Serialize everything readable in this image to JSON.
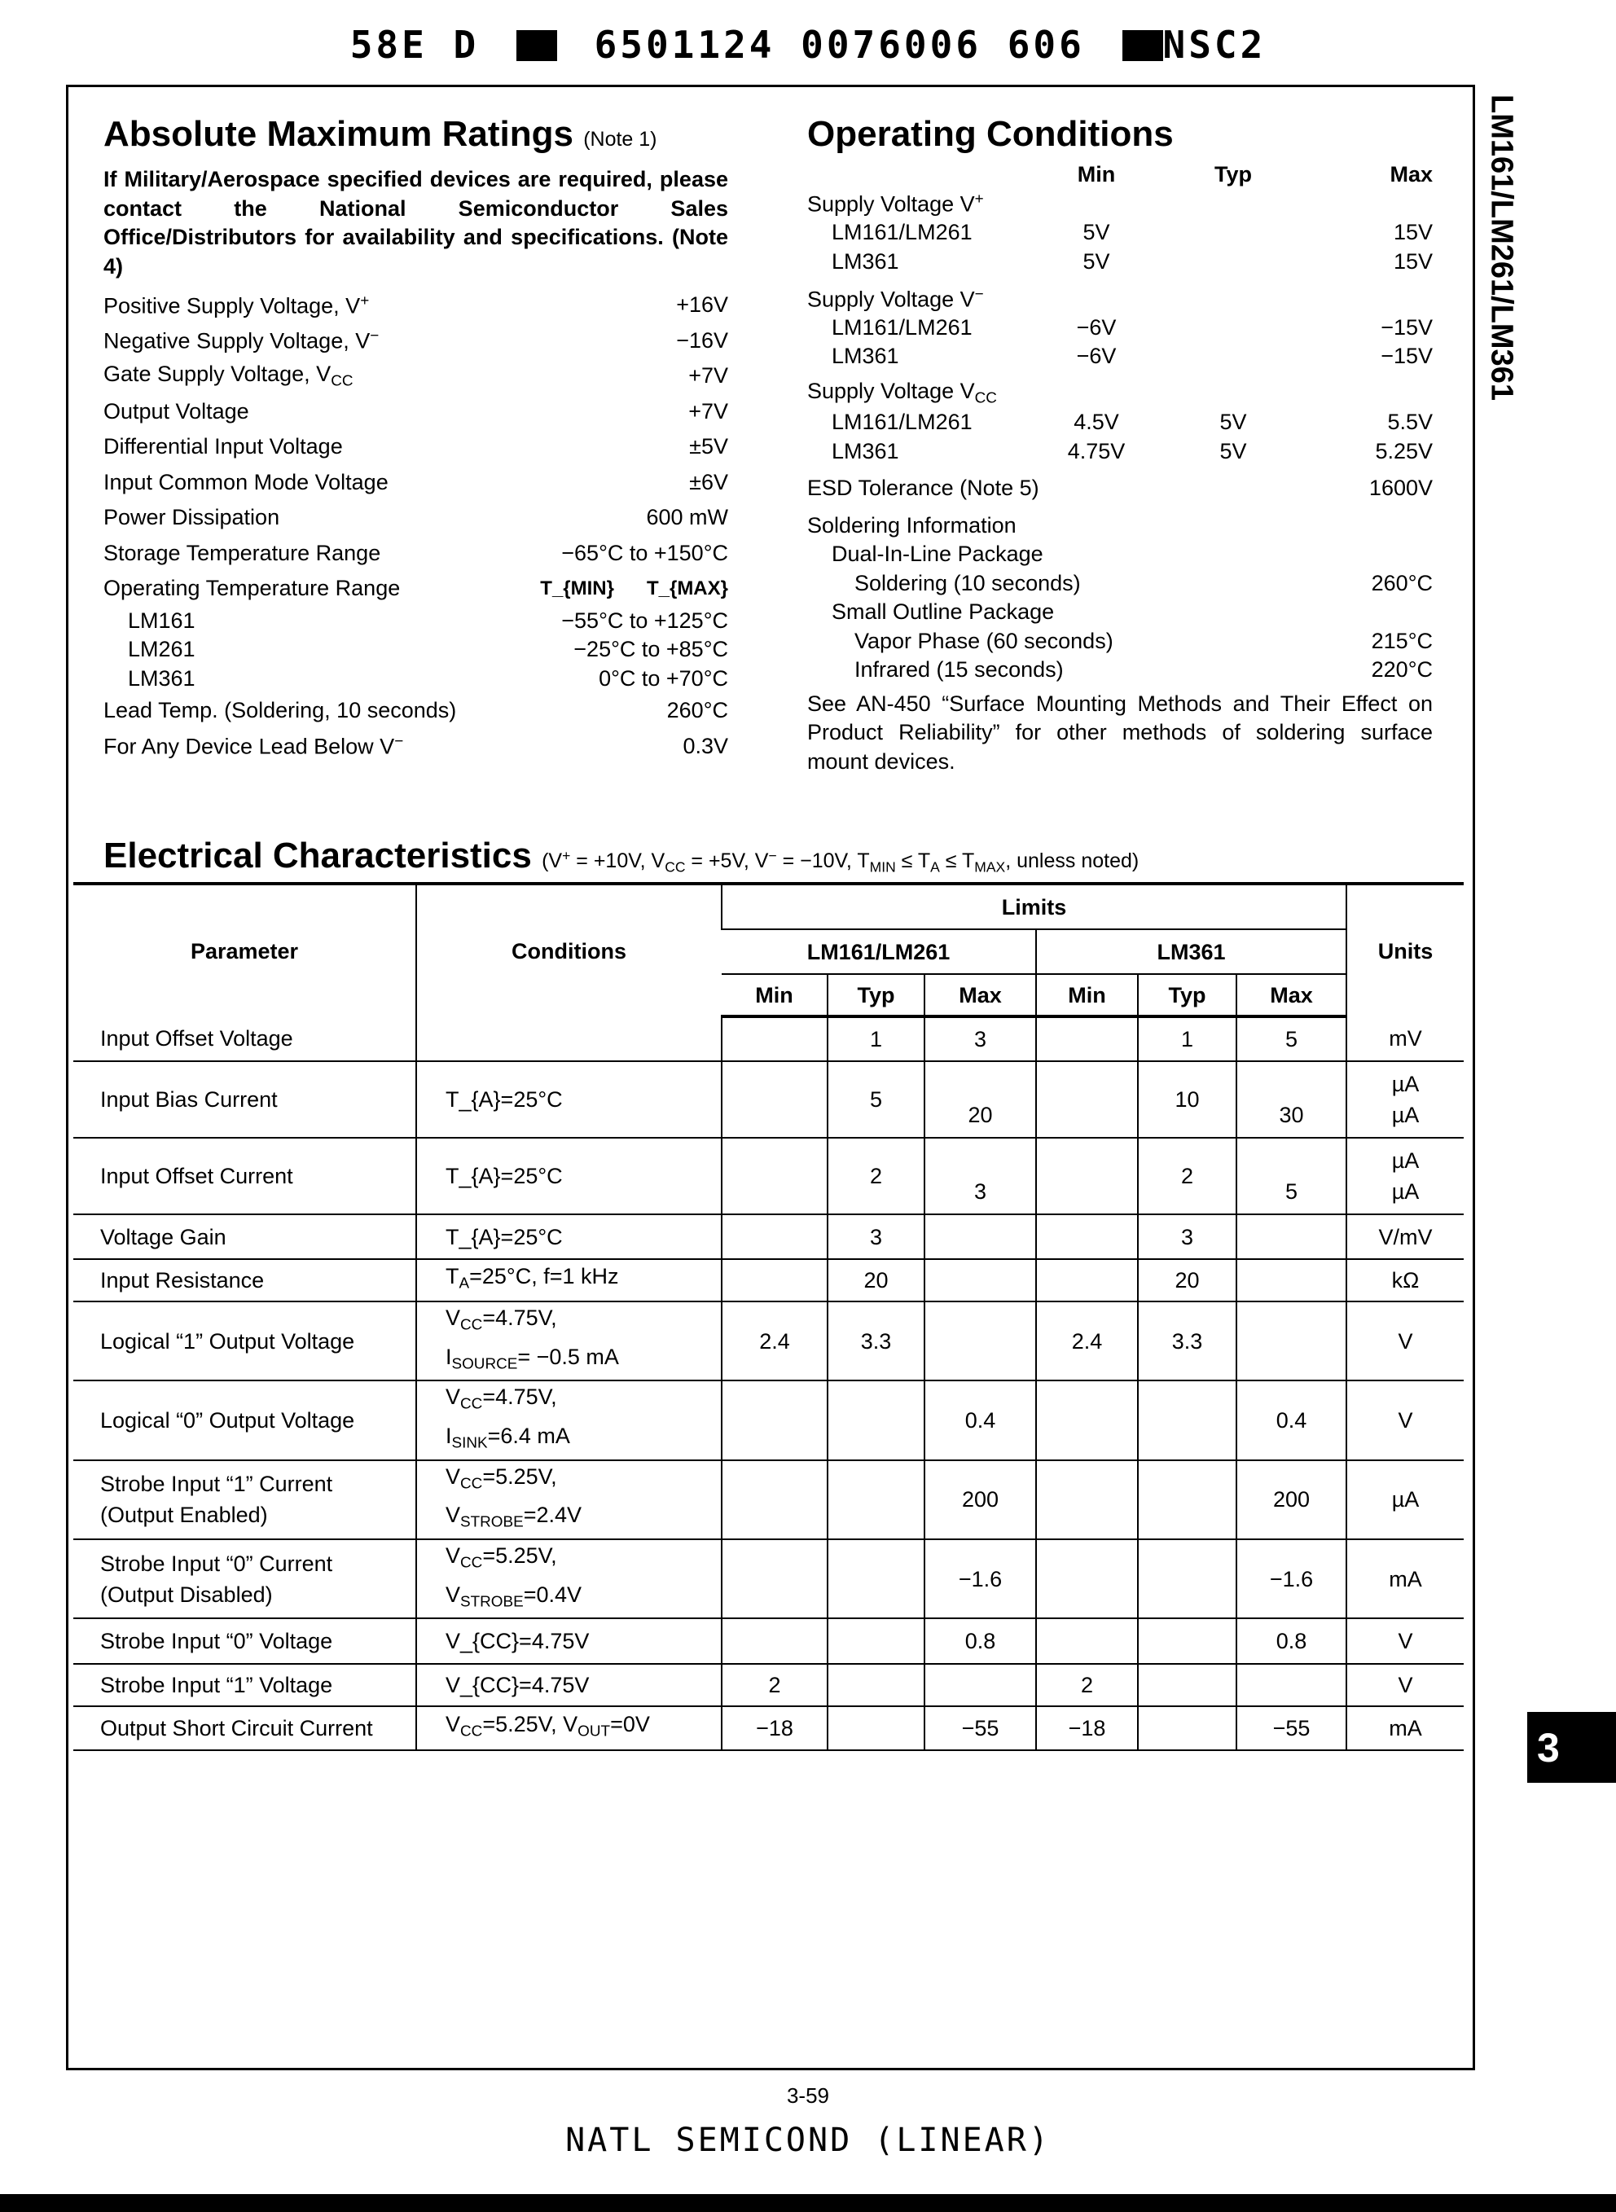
{
  "scan_header": {
    "left": "58E D",
    "middle": "6501124 0076006 606",
    "right": "NSC2"
  },
  "side_label": "LM161/LM261/LM361",
  "section_tab": "3",
  "page_number": "3-59",
  "footer": "NATL SEMICOND (LINEAR)",
  "abs_max": {
    "title": "Absolute Maximum Ratings",
    "title_note": "(Note 1)",
    "notice": "If Military/Aerospace specified devices are required, please contact the National Semiconductor Sales Office/Distributors for availability and specifications. (Note 4)",
    "tmin_label": "T_{MIN}",
    "tmax_label": "T_{MAX}",
    "items": [
      {
        "label": "Positive Supply Voltage, V^{+}",
        "value": "+16V"
      },
      {
        "label": "Negative Supply Voltage, V^{−}",
        "value": "−16V"
      },
      {
        "label": "Gate Supply Voltage, V_{CC}",
        "value": "+7V"
      },
      {
        "label": "Output Voltage",
        "value": "+7V"
      },
      {
        "label": "Differential Input Voltage",
        "value": "±5V"
      },
      {
        "label": "Input Common Mode Voltage",
        "value": "±6V"
      },
      {
        "label": "Power Dissipation",
        "value": "600 mW"
      },
      {
        "label": "Storage Temperature Range",
        "value": "−65°C to +150°C"
      },
      {
        "label": "Operating Temperature Range",
        "value": "",
        "tminmax": true
      },
      {
        "label": "LM161",
        "value": "−55°C to +125°C",
        "sub": true
      },
      {
        "label": "LM261",
        "value": "−25°C to +85°C",
        "sub": true
      },
      {
        "label": "LM361",
        "value": "0°C to +70°C",
        "sub": true
      },
      {
        "label": "Lead Temp. (Soldering, 10 seconds)",
        "value": "260°C"
      },
      {
        "label": "For Any Device Lead Below V^{−}",
        "value": "0.3V"
      }
    ]
  },
  "op_cond": {
    "title": "Operating Conditions",
    "headers": {
      "min": "Min",
      "typ": "Typ",
      "max": "Max"
    },
    "rows": [
      {
        "label": "Supply Voltage V^{+}",
        "indent": 0,
        "gap": false,
        "min": "",
        "typ": "",
        "max": ""
      },
      {
        "label": "LM161/LM261",
        "indent": 1,
        "min": "5V",
        "typ": "",
        "max": "15V"
      },
      {
        "label": "LM361",
        "indent": 1,
        "min": "5V",
        "typ": "",
        "max": "15V"
      },
      {
        "label": "Supply Voltage V^{−}",
        "indent": 0,
        "gap": true,
        "min": "",
        "typ": "",
        "max": ""
      },
      {
        "label": "LM161/LM261",
        "indent": 1,
        "min": "−6V",
        "typ": "",
        "max": "−15V"
      },
      {
        "label": "LM361",
        "indent": 1,
        "min": "−6V",
        "typ": "",
        "max": "−15V"
      },
      {
        "label": "Supply Voltage V_{CC}",
        "indent": 0,
        "gap": true,
        "min": "",
        "typ": "",
        "max": ""
      },
      {
        "label": "LM161/LM261",
        "indent": 1,
        "min": "4.5V",
        "typ": "5V",
        "max": "5.5V"
      },
      {
        "label": "LM361",
        "indent": 1,
        "min": "4.75V",
        "typ": "5V",
        "max": "5.25V"
      },
      {
        "label": "ESD Tolerance (Note 5)",
        "indent": 0,
        "gap": true,
        "min": "",
        "typ": "",
        "max": "1600V"
      },
      {
        "label": "Soldering Information",
        "indent": 0,
        "gap": true,
        "min": "",
        "typ": "",
        "max": ""
      },
      {
        "label": "Dual-In-Line Package",
        "indent": 1,
        "min": "",
        "typ": "",
        "max": ""
      },
      {
        "label": "Soldering (10 seconds)",
        "indent": 2,
        "min": "",
        "typ": "",
        "max": "260°C"
      },
      {
        "label": "Small Outline Package",
        "indent": 1,
        "min": "",
        "typ": "",
        "max": ""
      },
      {
        "label": "Vapor Phase (60 seconds)",
        "indent": 2,
        "min": "",
        "typ": "",
        "max": "215°C"
      },
      {
        "label": "Infrared (15 seconds)",
        "indent": 2,
        "min": "",
        "typ": "",
        "max": "220°C"
      }
    ],
    "note": "See AN-450 “Surface Mounting Methods and Their Effect on Product Reliability” for other methods of soldering surface mount devices."
  },
  "electrical": {
    "title": "Electrical Characteristics",
    "conditions": "(V^{+} = +10V, V_{CC} = +5V, V^{−} = −10V, T_{MIN} ≤ T_{A} ≤ T_{MAX}, unless noted)",
    "headers": {
      "parameter": "Parameter",
      "conditions": "Conditions",
      "limits": "Limits",
      "group1": "LM161/LM261",
      "group2": "LM361",
      "min": "Min",
      "typ": "Typ",
      "max": "Max",
      "units": "Units"
    },
    "rows": [
      {
        "parameter": "Input Offset Voltage",
        "conditions": "",
        "values": [
          "",
          "1",
          "3",
          "",
          "1",
          "5"
        ],
        "units": "mV"
      },
      {
        "parameter": "Input Bias Current",
        "conditions": "T_{A}=25°C",
        "values": [
          "",
          "5\n",
          "\n20",
          "",
          "10\n",
          "\n30"
        ],
        "units": "µA\nµA"
      },
      {
        "parameter": "Input Offset Current",
        "conditions": "T_{A}=25°C",
        "values": [
          "",
          "2\n",
          "\n3",
          "",
          "2\n",
          "\n5"
        ],
        "units": "µA\nµA"
      },
      {
        "parameter": "Voltage Gain",
        "conditions": "T_{A}=25°C",
        "values": [
          "",
          "3",
          "",
          "",
          "3",
          ""
        ],
        "units": "V/mV"
      },
      {
        "parameter": "Input Resistance",
        "conditions": "T_{A}=25°C, f=1 kHz",
        "values": [
          "",
          "20",
          "",
          "",
          "20",
          ""
        ],
        "units": "kΩ"
      },
      {
        "parameter": "Logical “1” Output Voltage",
        "conditions": "V_{CC}=4.75V,\nI_{SOURCE}= −0.5 mA",
        "values": [
          "2.4",
          "3.3",
          "",
          "2.4",
          "3.3",
          ""
        ],
        "units": "V"
      },
      {
        "parameter": "Logical “0” Output Voltage",
        "conditions": "V_{CC}=4.75V,\nI_{SINK}=6.4 mA",
        "values": [
          "",
          "",
          "0.4",
          "",
          "",
          "0.4"
        ],
        "units": "V"
      },
      {
        "parameter": "Strobe Input “1” Current\n(Output Enabled)",
        "conditions": "V_{CC}=5.25V,\nV_{STROBE}=2.4V",
        "values": [
          "",
          "",
          "200",
          "",
          "",
          "200"
        ],
        "units": "µA"
      },
      {
        "parameter": "Strobe Input “0” Current\n(Output Disabled)",
        "conditions": "V_{CC}=5.25V,\nV_{STROBE}=0.4V",
        "values": [
          "",
          "",
          "−1.6",
          "",
          "",
          "−1.6"
        ],
        "units": "mA"
      },
      {
        "parameter": "Strobe Input “0” Voltage",
        "conditions": "V_{CC}=4.75V",
        "values": [
          "",
          "",
          "0.8",
          "",
          "",
          "0.8"
        ],
        "units": "V"
      },
      {
        "parameter": "Strobe Input “1” Voltage",
        "conditions": "V_{CC}=4.75V",
        "values": [
          "2",
          "",
          "",
          "2",
          "",
          ""
        ],
        "units": "V"
      },
      {
        "parameter": "Output Short Circuit Current",
        "conditions": "V_{CC}=5.25V, V_{OUT}=0V",
        "values": [
          "−18",
          "",
          "−55",
          "−18",
          "",
          "−55"
        ],
        "units": "mA"
      }
    ]
  }
}
